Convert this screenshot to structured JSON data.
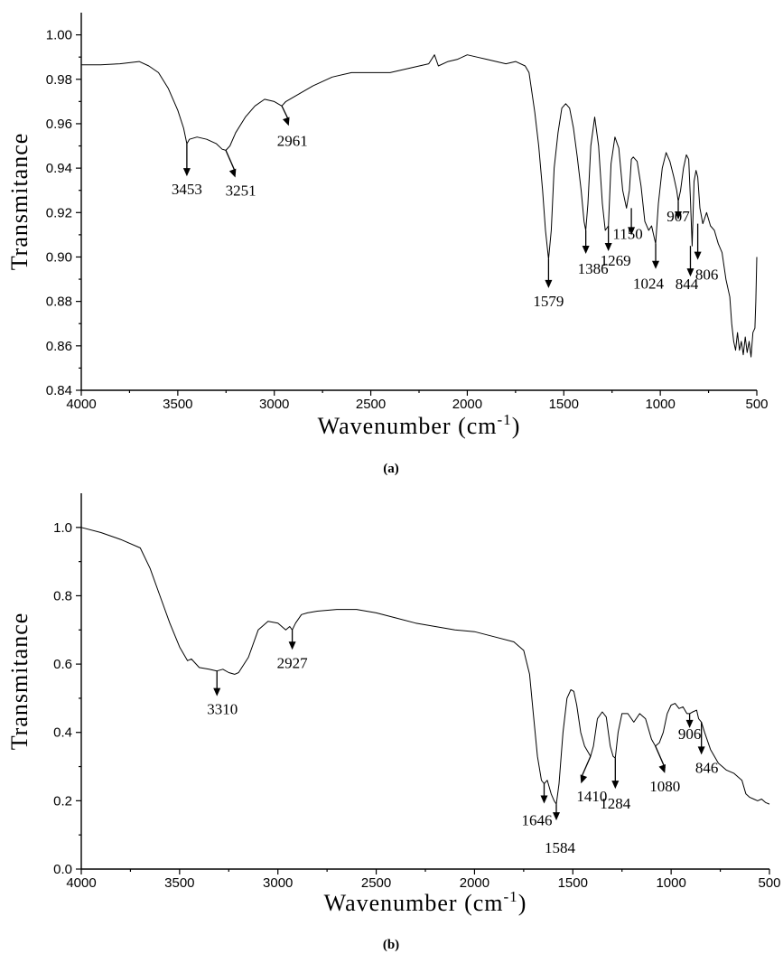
{
  "chart_data": [
    {
      "type": "line",
      "panel": "(a)",
      "xlabel": "Wavenumber (cm",
      "xlabel_sup": "-1",
      "xlabel_close": ")",
      "ylabel": "Transmitance",
      "xlim": [
        4000,
        500
      ],
      "ylim": [
        0.84,
        1.01
      ],
      "x_ticks": [
        4000,
        3500,
        3000,
        2500,
        2000,
        1500,
        1000,
        500
      ],
      "x_tick_labels": [
        "4000",
        "3500",
        "3000",
        "2500",
        "2000",
        "1500",
        "1000",
        "500"
      ],
      "y_ticks": [
        0.84,
        0.86,
        0.88,
        0.9,
        0.92,
        0.94,
        0.96,
        0.98,
        1.0
      ],
      "y_tick_labels": [
        "0.84",
        "0.86",
        "0.88",
        "0.90",
        "0.92",
        "0.94",
        "0.96",
        "0.98",
        "1.00"
      ],
      "series": [
        {
          "x": [
            4000,
            3900,
            3800,
            3700,
            3650,
            3600,
            3550,
            3500,
            3470,
            3453,
            3440,
            3400,
            3350,
            3300,
            3270,
            3251,
            3230,
            3200,
            3150,
            3100,
            3050,
            3000,
            2961,
            2940,
            2900,
            2800,
            2700,
            2600,
            2500,
            2400,
            2300,
            2200,
            2170,
            2150,
            2100,
            2050,
            2000,
            1950,
            1900,
            1800,
            1750,
            1700,
            1680,
            1650,
            1630,
            1610,
            1595,
            1579,
            1565,
            1550,
            1530,
            1510,
            1490,
            1470,
            1450,
            1430,
            1410,
            1395,
            1386,
            1375,
            1360,
            1340,
            1320,
            1300,
            1285,
            1269,
            1255,
            1235,
            1215,
            1195,
            1175,
            1160,
            1150,
            1140,
            1120,
            1100,
            1080,
            1060,
            1045,
            1035,
            1024,
            1010,
            990,
            970,
            950,
            930,
            915,
            907,
            895,
            880,
            865,
            853,
            844,
            835,
            825,
            815,
            806,
            795,
            780,
            760,
            740,
            720,
            700,
            680,
            660,
            640,
            630,
            620,
            610,
            600,
            590,
            580,
            570,
            560,
            550,
            540,
            530,
            520,
            510,
            505,
            500
          ],
          "y": [
            0.9865,
            0.9865,
            0.987,
            0.988,
            0.986,
            0.983,
            0.976,
            0.966,
            0.958,
            0.951,
            0.953,
            0.954,
            0.953,
            0.951,
            0.9485,
            0.948,
            0.95,
            0.956,
            0.963,
            0.968,
            0.971,
            0.97,
            0.968,
            0.97,
            0.972,
            0.977,
            0.981,
            0.983,
            0.983,
            0.983,
            0.985,
            0.987,
            0.991,
            0.986,
            0.988,
            0.989,
            0.991,
            0.99,
            0.989,
            0.987,
            0.988,
            0.986,
            0.983,
            0.965,
            0.95,
            0.93,
            0.912,
            0.899,
            0.912,
            0.94,
            0.956,
            0.967,
            0.969,
            0.967,
            0.958,
            0.945,
            0.93,
            0.916,
            0.912,
            0.924,
            0.95,
            0.963,
            0.95,
            0.924,
            0.912,
            0.914,
            0.942,
            0.954,
            0.949,
            0.93,
            0.922,
            0.93,
            0.944,
            0.945,
            0.943,
            0.932,
            0.916,
            0.912,
            0.914,
            0.91,
            0.906,
            0.924,
            0.94,
            0.947,
            0.943,
            0.936,
            0.93,
            0.925,
            0.93,
            0.94,
            0.946,
            0.944,
            0.926,
            0.905,
            0.934,
            0.939,
            0.936,
            0.922,
            0.915,
            0.92,
            0.914,
            0.912,
            0.906,
            0.902,
            0.89,
            0.882,
            0.87,
            0.862,
            0.858,
            0.866,
            0.858,
            0.862,
            0.856,
            0.864,
            0.857,
            0.862,
            0.855,
            0.866,
            0.868,
            0.88,
            0.9
          ]
        }
      ],
      "annotations": [
        {
          "label": "3453",
          "x": 3453,
          "y": 0.951
        },
        {
          "label": "3251",
          "x": 3251,
          "y": 0.948
        },
        {
          "label": "2961",
          "x": 2961,
          "y": 0.968
        },
        {
          "label": "1579",
          "x": 1579,
          "y": 0.899
        },
        {
          "label": "1386",
          "x": 1386,
          "y": 0.912
        },
        {
          "label": "1269",
          "x": 1269,
          "y": 0.914
        },
        {
          "label": "1150",
          "x": 1150,
          "y": 0.922
        },
        {
          "label": "1024",
          "x": 1024,
          "y": 0.906
        },
        {
          "label": "907",
          "x": 907,
          "y": 0.925
        },
        {
          "label": "844",
          "x": 844,
          "y": 0.905
        },
        {
          "label": "806",
          "x": 806,
          "y": 0.915
        }
      ],
      "caption": "(a)"
    },
    {
      "type": "line",
      "panel": "(b)",
      "xlabel": "Wavenumber (cm",
      "xlabel_sup": "-1",
      "xlabel_close": ")",
      "ylabel": "Transmitance",
      "xlim": [
        4000,
        500
      ],
      "ylim": [
        0.0,
        1.1
      ],
      "x_ticks": [
        4000,
        3500,
        3000,
        2500,
        2000,
        1500,
        1000,
        500
      ],
      "x_tick_labels": [
        "4000",
        "3500",
        "3000",
        "2500",
        "2000",
        "1500",
        "1000",
        "500"
      ],
      "y_ticks": [
        0.0,
        0.2,
        0.4,
        0.6,
        0.8,
        1.0
      ],
      "y_tick_labels": [
        "0.0",
        "0.2",
        "0.4",
        "0.6",
        "0.8",
        "1.0"
      ],
      "series": [
        {
          "x": [
            4000,
            3900,
            3800,
            3700,
            3650,
            3600,
            3550,
            3500,
            3460,
            3440,
            3400,
            3350,
            3310,
            3280,
            3250,
            3220,
            3200,
            3150,
            3100,
            3050,
            3000,
            2960,
            2940,
            2927,
            2910,
            2880,
            2850,
            2800,
            2700,
            2600,
            2500,
            2400,
            2300,
            2200,
            2100,
            2000,
            1900,
            1800,
            1750,
            1720,
            1700,
            1680,
            1660,
            1646,
            1630,
            1610,
            1595,
            1584,
            1570,
            1550,
            1530,
            1510,
            1495,
            1480,
            1460,
            1440,
            1420,
            1410,
            1395,
            1375,
            1350,
            1330,
            1310,
            1295,
            1284,
            1270,
            1250,
            1220,
            1190,
            1160,
            1130,
            1100,
            1080,
            1060,
            1040,
            1020,
            1000,
            980,
            960,
            940,
            920,
            906,
            890,
            870,
            860,
            846,
            830,
            800,
            760,
            720,
            680,
            640,
            620,
            600,
            580,
            560,
            540,
            520,
            500
          ],
          "y": [
            1.0,
            0.985,
            0.965,
            0.94,
            0.88,
            0.8,
            0.72,
            0.65,
            0.61,
            0.615,
            0.59,
            0.585,
            0.58,
            0.585,
            0.575,
            0.57,
            0.575,
            0.62,
            0.7,
            0.725,
            0.72,
            0.7,
            0.71,
            0.7,
            0.72,
            0.745,
            0.75,
            0.755,
            0.76,
            0.76,
            0.75,
            0.735,
            0.72,
            0.71,
            0.7,
            0.695,
            0.68,
            0.665,
            0.64,
            0.57,
            0.45,
            0.33,
            0.26,
            0.25,
            0.26,
            0.22,
            0.2,
            0.19,
            0.25,
            0.4,
            0.5,
            0.525,
            0.52,
            0.48,
            0.4,
            0.36,
            0.34,
            0.33,
            0.36,
            0.44,
            0.46,
            0.445,
            0.36,
            0.33,
            0.325,
            0.4,
            0.455,
            0.455,
            0.43,
            0.455,
            0.44,
            0.38,
            0.36,
            0.37,
            0.4,
            0.455,
            0.48,
            0.485,
            0.47,
            0.475,
            0.455,
            0.455,
            0.46,
            0.465,
            0.44,
            0.43,
            0.4,
            0.35,
            0.31,
            0.29,
            0.28,
            0.26,
            0.22,
            0.21,
            0.205,
            0.2,
            0.205,
            0.195,
            0.19
          ]
        }
      ],
      "annotations": [
        {
          "label": "3310",
          "x": 3310,
          "y": 0.58
        },
        {
          "label": "2927",
          "x": 2927,
          "y": 0.7
        },
        {
          "label": "1646",
          "x": 1646,
          "y": 0.25
        },
        {
          "label": "1584",
          "x": 1584,
          "y": 0.19
        },
        {
          "label": "1410",
          "x": 1410,
          "y": 0.33
        },
        {
          "label": "1284",
          "x": 1284,
          "y": 0.325
        },
        {
          "label": "1080",
          "x": 1080,
          "y": 0.36
        },
        {
          "label": "906",
          "x": 906,
          "y": 0.455
        },
        {
          "label": "846",
          "x": 846,
          "y": 0.43
        }
      ],
      "caption": "(b)"
    }
  ]
}
